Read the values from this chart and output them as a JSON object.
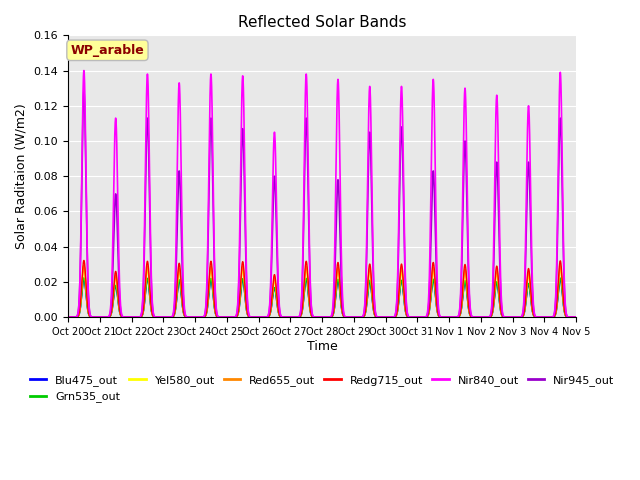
{
  "title": "Reflected Solar Bands",
  "xlabel": "Time",
  "ylabel_actual": "Solar Raditaion (W/m2)",
  "annotation": "WP_arable",
  "annotation_color": "#8B0000",
  "annotation_bg": "#FFFF99",
  "ylim": [
    0,
    0.16
  ],
  "yticks": [
    0.0,
    0.02,
    0.04,
    0.06,
    0.08,
    0.1,
    0.12,
    0.14,
    0.16
  ],
  "bg_color": "#E8E8E8",
  "series_colors": {
    "Blu475_out": "#0000FF",
    "Grn535_out": "#00CC00",
    "Yel580_out": "#FFFF00",
    "Red655_out": "#FF8800",
    "Redg715_out": "#FF0000",
    "Nir840_out": "#FF00FF",
    "Nir945_out": "#9900CC"
  },
  "n_days": 16,
  "start_day": 20,
  "samples_per_day": 288,
  "peak_nir840": [
    0.14,
    0.113,
    0.138,
    0.133,
    0.138,
    0.137,
    0.105,
    0.138,
    0.135,
    0.131,
    0.131,
    0.135,
    0.13,
    0.126,
    0.12,
    0.139
  ],
  "peak_nir945": [
    0.128,
    0.07,
    0.113,
    0.083,
    0.113,
    0.107,
    0.08,
    0.113,
    0.078,
    0.105,
    0.108,
    0.083,
    0.1,
    0.088,
    0.088,
    0.113
  ],
  "scale": {
    "Blu475_out": 0.155,
    "Grn535_out": 0.16,
    "Yel580_out": 0.195,
    "Red655_out": 0.21,
    "Redg715_out": 0.23,
    "Nir840_out": 1.0,
    "Nir945_out": 0.78
  },
  "plot_order": [
    "Blu475_out",
    "Grn535_out",
    "Yel580_out",
    "Red655_out",
    "Redg715_out",
    "Nir945_out",
    "Nir840_out"
  ],
  "legend_order": [
    "Blu475_out",
    "Grn535_out",
    "Yel580_out",
    "Red655_out",
    "Redg715_out",
    "Nir840_out",
    "Nir945_out"
  ]
}
